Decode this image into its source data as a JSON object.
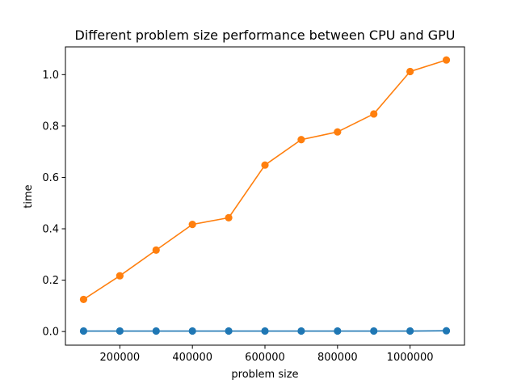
{
  "chart_data": {
    "type": "line",
    "title": "Different problem size performance between CPU and GPU",
    "xlabel": "problem size",
    "ylabel": "time",
    "x": [
      100000,
      200000,
      300000,
      400000,
      500000,
      600000,
      700000,
      800000,
      900000,
      1000000,
      1100000
    ],
    "xlim": [
      50000,
      1150000
    ],
    "ylim": [
      -0.053,
      1.108
    ],
    "xticks": [
      200000,
      400000,
      600000,
      800000,
      1000000
    ],
    "xtick_labels": [
      "200000",
      "400000",
      "600000",
      "800000",
      "1000000"
    ],
    "yticks": [
      0.0,
      0.2,
      0.4,
      0.6,
      0.8,
      1.0
    ],
    "ytick_labels": [
      "0.0",
      "0.2",
      "0.4",
      "0.6",
      "0.8",
      "1.0"
    ],
    "grid": false,
    "legend": "none",
    "series": [
      {
        "values": [
          0.002,
          0.002,
          0.002,
          0.002,
          0.002,
          0.002,
          0.002,
          0.002,
          0.002,
          0.002,
          0.003
        ],
        "color": "#1f77b4",
        "marker": "circle"
      },
      {
        "values": [
          0.125,
          0.217,
          0.317,
          0.417,
          0.443,
          0.648,
          0.747,
          0.777,
          0.847,
          1.012,
          1.057
        ],
        "color": "#ff7f0e",
        "marker": "circle"
      }
    ]
  }
}
